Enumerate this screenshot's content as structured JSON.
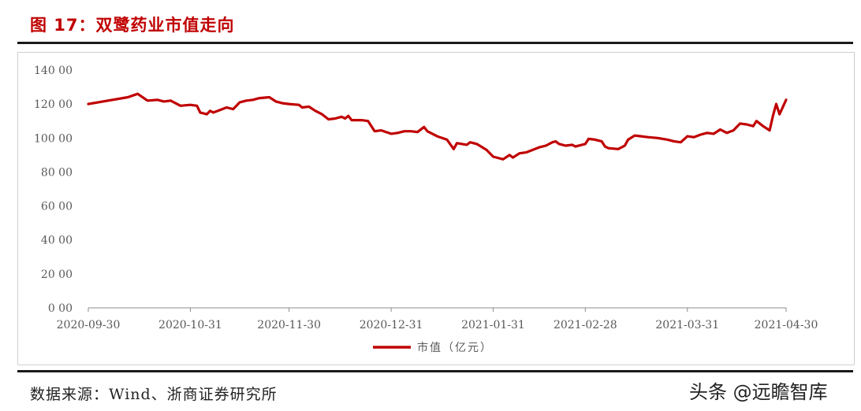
{
  "figure": {
    "title": "图 17：双鹭药业市值走向",
    "source": "数据来源：Wind、浙商证券研究所",
    "watermark": "头条 @远瞻智库"
  },
  "chart_data": {
    "type": "line",
    "title": "图 17：双鹭药业市值走向",
    "xlabel": "",
    "ylabel": "",
    "ylim": [
      0,
      140
    ],
    "yticks": [
      "0 00",
      "20 00",
      "40 00",
      "60 00",
      "80 00",
      "100 00",
      "120 00",
      "140 00"
    ],
    "xticks": [
      "2020-09-30",
      "2020-10-31",
      "2020-11-30",
      "2020-12-31",
      "2021-01-31",
      "2021-02-28",
      "2021-03-31",
      "2021-04-30"
    ],
    "grid": false,
    "legend": "bottom-center",
    "series": [
      {
        "name": "市值（亿元）",
        "color": "#c00000",
        "points": [
          [
            "2020-09-30",
            120
          ],
          [
            "2020-10-06",
            122
          ],
          [
            "2020-10-12",
            124
          ],
          [
            "2020-10-15",
            126
          ],
          [
            "2020-10-18",
            122
          ],
          [
            "2020-10-21",
            122.5
          ],
          [
            "2020-10-23",
            121.5
          ],
          [
            "2020-10-25",
            122
          ],
          [
            "2020-10-28",
            119
          ],
          [
            "2020-10-31",
            119.5
          ],
          [
            "2020-11-02",
            119
          ],
          [
            "2020-11-03",
            115
          ],
          [
            "2020-11-05",
            114
          ],
          [
            "2020-11-06",
            116
          ],
          [
            "2020-11-07",
            115
          ],
          [
            "2020-11-09",
            116.5
          ],
          [
            "2020-11-11",
            118
          ],
          [
            "2020-11-13",
            117
          ],
          [
            "2020-11-15",
            121
          ],
          [
            "2020-11-17",
            122
          ],
          [
            "2020-11-19",
            122.5
          ],
          [
            "2020-11-21",
            123.5
          ],
          [
            "2020-11-24",
            124
          ],
          [
            "2020-11-26",
            121.5
          ],
          [
            "2020-11-28",
            120.5
          ],
          [
            "2020-11-30",
            120
          ],
          [
            "2020-12-03",
            119.5
          ],
          [
            "2020-12-04",
            118
          ],
          [
            "2020-12-06",
            118.5
          ],
          [
            "2020-12-08",
            116
          ],
          [
            "2020-12-10",
            114
          ],
          [
            "2020-12-12",
            111
          ],
          [
            "2020-12-14",
            111.5
          ],
          [
            "2020-12-16",
            112.5
          ],
          [
            "2020-12-17",
            111.5
          ],
          [
            "2020-12-18",
            113
          ],
          [
            "2020-12-19",
            110.5
          ],
          [
            "2020-12-22",
            110.5
          ],
          [
            "2020-12-24",
            110
          ],
          [
            "2020-12-26",
            104
          ],
          [
            "2020-12-28",
            104.5
          ],
          [
            "2020-12-31",
            102.5
          ],
          [
            "2021-01-02",
            103
          ],
          [
            "2021-01-04",
            104
          ],
          [
            "2021-01-06",
            104
          ],
          [
            "2021-01-08",
            103.5
          ],
          [
            "2021-01-10",
            106.5
          ],
          [
            "2021-01-11",
            104
          ],
          [
            "2021-01-14",
            101
          ],
          [
            "2021-01-17",
            99
          ],
          [
            "2021-01-19",
            93.5
          ],
          [
            "2021-01-20",
            97
          ],
          [
            "2021-01-23",
            96
          ],
          [
            "2021-01-24",
            97.5
          ],
          [
            "2021-01-26",
            96.5
          ],
          [
            "2021-01-29",
            93
          ],
          [
            "2021-01-31",
            89
          ],
          [
            "2021-02-03",
            87.5
          ],
          [
            "2021-02-05",
            90
          ],
          [
            "2021-02-06",
            88.5
          ],
          [
            "2021-02-08",
            91
          ],
          [
            "2021-02-10",
            91.5
          ],
          [
            "2021-02-12",
            93
          ],
          [
            "2021-02-14",
            94.5
          ],
          [
            "2021-02-16",
            95.5
          ],
          [
            "2021-02-18",
            97.5
          ],
          [
            "2021-02-19",
            98
          ],
          [
            "2021-02-20",
            96.5
          ],
          [
            "2021-02-22",
            95.5
          ],
          [
            "2021-02-24",
            96
          ],
          [
            "2021-02-25",
            95
          ],
          [
            "2021-02-28",
            96.5
          ],
          [
            "2021-03-01",
            99.5
          ],
          [
            "2021-03-03",
            99
          ],
          [
            "2021-03-05",
            98
          ],
          [
            "2021-03-06",
            95
          ],
          [
            "2021-03-07",
            94
          ],
          [
            "2021-03-10",
            93.5
          ],
          [
            "2021-03-12",
            95.5
          ],
          [
            "2021-03-13",
            99
          ],
          [
            "2021-03-15",
            101.5
          ],
          [
            "2021-03-17",
            101
          ],
          [
            "2021-03-19",
            100.5
          ],
          [
            "2021-03-22",
            100
          ],
          [
            "2021-03-25",
            99
          ],
          [
            "2021-03-27",
            98
          ],
          [
            "2021-03-29",
            97.5
          ],
          [
            "2021-03-31",
            101
          ],
          [
            "2021-04-02",
            100.5
          ],
          [
            "2021-04-04",
            102
          ],
          [
            "2021-04-06",
            103
          ],
          [
            "2021-04-08",
            102.5
          ],
          [
            "2021-04-10",
            105
          ],
          [
            "2021-04-12",
            103
          ],
          [
            "2021-04-14",
            104.5
          ],
          [
            "2021-04-16",
            108.5
          ],
          [
            "2021-04-18",
            108
          ],
          [
            "2021-04-20",
            107
          ],
          [
            "2021-04-21",
            110
          ],
          [
            "2021-04-23",
            107
          ],
          [
            "2021-04-25",
            104.5
          ],
          [
            "2021-04-26",
            113
          ],
          [
            "2021-04-27",
            120
          ],
          [
            "2021-04-28",
            114
          ],
          [
            "2021-04-30",
            122.5
          ]
        ]
      }
    ]
  }
}
